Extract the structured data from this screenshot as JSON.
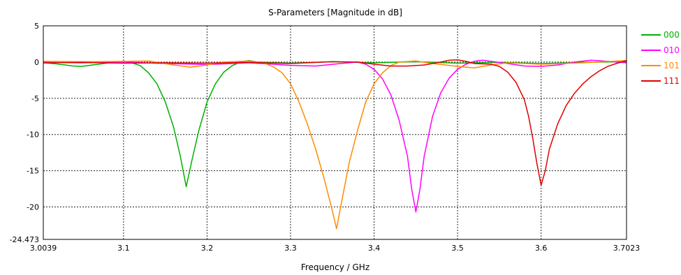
{
  "chart_data": {
    "type": "line",
    "title": "S-Parameters [Magnitude in dB]",
    "xlabel": "Frequency / GHz",
    "ylabel": "",
    "xlim": [
      3.0039,
      3.7023
    ],
    "ylim": [
      -24.473,
      5
    ],
    "x_ticks": [
      3.0039,
      3.1,
      3.2,
      3.3,
      3.4,
      3.5,
      3.6,
      3.7023
    ],
    "x_tick_labels": [
      "3.0039",
      "3.1",
      "3.2",
      "3.3",
      "3.4",
      "3.5",
      "3.6",
      "3.7023"
    ],
    "y_ticks": [
      5,
      0,
      -5,
      -10,
      -15,
      -20,
      -24.473
    ],
    "y_tick_labels": [
      "5",
      "0",
      "-5",
      "-10",
      "-15",
      "-20",
      "-24.473"
    ],
    "grid": true,
    "legend_position": "right",
    "series": [
      {
        "name": "000",
        "color": "#00b000",
        "points": [
          [
            3.0039,
            -0.1
          ],
          [
            3.02,
            -0.25
          ],
          [
            3.04,
            -0.55
          ],
          [
            3.05,
            -0.6
          ],
          [
            3.07,
            -0.3
          ],
          [
            3.09,
            0.0
          ],
          [
            3.1,
            0.05
          ],
          [
            3.11,
            -0.1
          ],
          [
            3.12,
            -0.5
          ],
          [
            3.13,
            -1.5
          ],
          [
            3.14,
            -3.0
          ],
          [
            3.15,
            -5.5
          ],
          [
            3.16,
            -9.0
          ],
          [
            3.168,
            -13.0
          ],
          [
            3.175,
            -17.2
          ],
          [
            3.182,
            -13.5
          ],
          [
            3.19,
            -9.5
          ],
          [
            3.2,
            -5.5
          ],
          [
            3.21,
            -3.0
          ],
          [
            3.22,
            -1.4
          ],
          [
            3.23,
            -0.5
          ],
          [
            3.24,
            0.0
          ],
          [
            3.25,
            0.2
          ],
          [
            3.26,
            0.0
          ],
          [
            3.3,
            -0.15
          ],
          [
            3.35,
            0.05
          ],
          [
            3.4,
            -0.1
          ],
          [
            3.45,
            0.05
          ],
          [
            3.5,
            -0.15
          ],
          [
            3.55,
            -0.05
          ],
          [
            3.6,
            -0.2
          ],
          [
            3.65,
            -0.05
          ],
          [
            3.7023,
            0.05
          ]
        ]
      },
      {
        "name": "010",
        "color": "#ff00ff",
        "points": [
          [
            3.0039,
            -0.05
          ],
          [
            3.05,
            -0.1
          ],
          [
            3.1,
            0.0
          ],
          [
            3.15,
            -0.2
          ],
          [
            3.2,
            -0.35
          ],
          [
            3.25,
            -0.1
          ],
          [
            3.3,
            -0.45
          ],
          [
            3.33,
            -0.55
          ],
          [
            3.36,
            -0.2
          ],
          [
            3.38,
            0.0
          ],
          [
            3.39,
            -0.3
          ],
          [
            3.4,
            -1.0
          ],
          [
            3.41,
            -2.3
          ],
          [
            3.42,
            -4.5
          ],
          [
            3.43,
            -8.0
          ],
          [
            3.44,
            -13.0
          ],
          [
            3.445,
            -17.5
          ],
          [
            3.45,
            -20.7
          ],
          [
            3.455,
            -17.5
          ],
          [
            3.46,
            -13.0
          ],
          [
            3.47,
            -7.5
          ],
          [
            3.48,
            -4.2
          ],
          [
            3.49,
            -2.2
          ],
          [
            3.5,
            -1.0
          ],
          [
            3.51,
            -0.3
          ],
          [
            3.52,
            0.1
          ],
          [
            3.53,
            0.25
          ],
          [
            3.54,
            0.1
          ],
          [
            3.56,
            -0.2
          ],
          [
            3.58,
            -0.55
          ],
          [
            3.6,
            -0.6
          ],
          [
            3.62,
            -0.4
          ],
          [
            3.64,
            0.0
          ],
          [
            3.66,
            0.25
          ],
          [
            3.68,
            0.1
          ],
          [
            3.7023,
            -0.1
          ]
        ]
      },
      {
        "name": "101",
        "color": "#ff8c00",
        "points": [
          [
            3.0039,
            0.1
          ],
          [
            3.05,
            0.05
          ],
          [
            3.1,
            0.1
          ],
          [
            3.13,
            0.15
          ],
          [
            3.16,
            -0.4
          ],
          [
            3.18,
            -0.7
          ],
          [
            3.2,
            -0.4
          ],
          [
            3.22,
            0.0
          ],
          [
            3.25,
            0.15
          ],
          [
            3.27,
            -0.2
          ],
          [
            3.28,
            -0.7
          ],
          [
            3.29,
            -1.5
          ],
          [
            3.3,
            -3.0
          ],
          [
            3.31,
            -5.5
          ],
          [
            3.32,
            -8.5
          ],
          [
            3.33,
            -12.0
          ],
          [
            3.34,
            -16.0
          ],
          [
            3.35,
            -20.5
          ],
          [
            3.355,
            -23.0
          ],
          [
            3.36,
            -20.0
          ],
          [
            3.37,
            -14.0
          ],
          [
            3.38,
            -9.5
          ],
          [
            3.39,
            -5.5
          ],
          [
            3.4,
            -3.0
          ],
          [
            3.41,
            -1.5
          ],
          [
            3.42,
            -0.5
          ],
          [
            3.43,
            0.0
          ],
          [
            3.45,
            0.15
          ],
          [
            3.47,
            -0.2
          ],
          [
            3.5,
            -0.6
          ],
          [
            3.52,
            -0.8
          ],
          [
            3.54,
            -0.4
          ],
          [
            3.56,
            -0.1
          ],
          [
            3.6,
            -0.3
          ],
          [
            3.65,
            -0.1
          ],
          [
            3.7023,
            0.2
          ]
        ]
      },
      {
        "name": "111",
        "color": "#e00000",
        "points": [
          [
            3.0039,
            -0.1
          ],
          [
            3.05,
            -0.05
          ],
          [
            3.1,
            -0.15
          ],
          [
            3.15,
            -0.1
          ],
          [
            3.2,
            -0.15
          ],
          [
            3.25,
            -0.05
          ],
          [
            3.3,
            -0.2
          ],
          [
            3.35,
            0.05
          ],
          [
            3.38,
            0.0
          ],
          [
            3.4,
            -0.3
          ],
          [
            3.42,
            -0.55
          ],
          [
            3.44,
            -0.55
          ],
          [
            3.46,
            -0.4
          ],
          [
            3.48,
            0.0
          ],
          [
            3.49,
            0.25
          ],
          [
            3.5,
            0.3
          ],
          [
            3.51,
            0.1
          ],
          [
            3.52,
            -0.2
          ],
          [
            3.54,
            -0.3
          ],
          [
            3.55,
            -0.6
          ],
          [
            3.56,
            -1.4
          ],
          [
            3.57,
            -2.8
          ],
          [
            3.58,
            -5.2
          ],
          [
            3.585,
            -7.5
          ],
          [
            3.59,
            -10.5
          ],
          [
            3.595,
            -14.0
          ],
          [
            3.6,
            -17.0
          ],
          [
            3.605,
            -15.0
          ],
          [
            3.61,
            -12.0
          ],
          [
            3.62,
            -8.5
          ],
          [
            3.63,
            -6.0
          ],
          [
            3.64,
            -4.3
          ],
          [
            3.65,
            -3.0
          ],
          [
            3.66,
            -2.0
          ],
          [
            3.67,
            -1.2
          ],
          [
            3.68,
            -0.6
          ],
          [
            3.69,
            -0.2
          ],
          [
            3.7023,
            0.2
          ]
        ]
      }
    ]
  }
}
